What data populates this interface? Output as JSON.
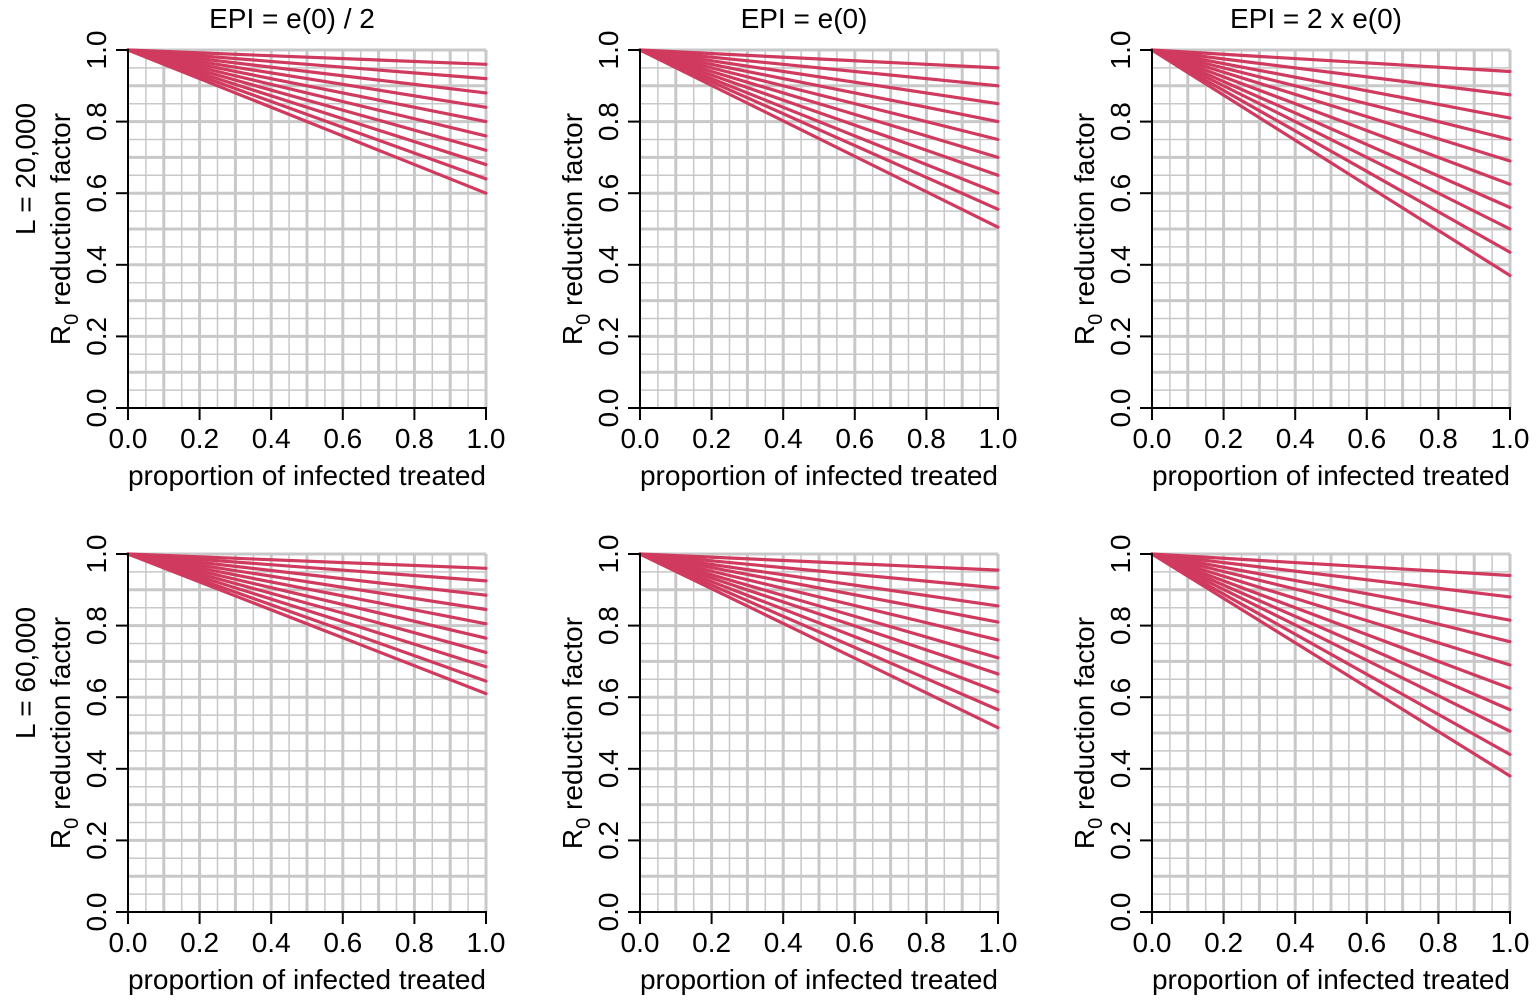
{
  "figure": {
    "column_titles": [
      "EPI = e(0) / 2",
      "EPI = e(0)",
      "EPI = 2 x e(0)"
    ],
    "row_labels": [
      "L = 20,000",
      "L = 60,000"
    ]
  },
  "style": {
    "line_color": "#d03a5e",
    "grid_color": "#c8c8c8",
    "axis_color": "#000000"
  },
  "chart_data": [
    {
      "type": "line",
      "row": 0,
      "col": 0,
      "title": "EPI = e(0) / 2",
      "row_label": "L = 20,000",
      "xlabel": "proportion of infected treated",
      "ylabel": {
        "main": "R",
        "sub": "0",
        "rest": " reduction factor"
      },
      "xlim": [
        0,
        1
      ],
      "ylim": [
        0,
        1
      ],
      "xticks": [
        "0.0",
        "0.2",
        "0.4",
        "0.6",
        "0.8",
        "1.0"
      ],
      "yticks": [
        "0.0",
        "0.2",
        "0.4",
        "0.6",
        "0.8",
        "1.0"
      ],
      "grid": true,
      "series": [
        {
          "x": [
            0,
            1
          ],
          "y": [
            1,
            0.96
          ]
        },
        {
          "x": [
            0,
            1
          ],
          "y": [
            1,
            0.92
          ]
        },
        {
          "x": [
            0,
            1
          ],
          "y": [
            1,
            0.88
          ]
        },
        {
          "x": [
            0,
            1
          ],
          "y": [
            1,
            0.84
          ]
        },
        {
          "x": [
            0,
            1
          ],
          "y": [
            1,
            0.8
          ]
        },
        {
          "x": [
            0,
            1
          ],
          "y": [
            1,
            0.76
          ]
        },
        {
          "x": [
            0,
            1
          ],
          "y": [
            1,
            0.72
          ]
        },
        {
          "x": [
            0,
            1
          ],
          "y": [
            1,
            0.68
          ]
        },
        {
          "x": [
            0,
            1
          ],
          "y": [
            1,
            0.64
          ]
        },
        {
          "x": [
            0,
            1
          ],
          "y": [
            1,
            0.6
          ]
        }
      ]
    },
    {
      "type": "line",
      "row": 0,
      "col": 1,
      "title": "EPI = e(0)",
      "xlabel": "proportion of infected treated",
      "ylabel": {
        "main": "R",
        "sub": "0",
        "rest": " reduction factor"
      },
      "xlim": [
        0,
        1
      ],
      "ylim": [
        0,
        1
      ],
      "xticks": [
        "0.0",
        "0.2",
        "0.4",
        "0.6",
        "0.8",
        "1.0"
      ],
      "yticks": [
        "0.0",
        "0.2",
        "0.4",
        "0.6",
        "0.8",
        "1.0"
      ],
      "grid": true,
      "series": [
        {
          "x": [
            0,
            1
          ],
          "y": [
            1,
            0.95
          ]
        },
        {
          "x": [
            0,
            1
          ],
          "y": [
            1,
            0.9
          ]
        },
        {
          "x": [
            0,
            1
          ],
          "y": [
            1,
            0.85
          ]
        },
        {
          "x": [
            0,
            1
          ],
          "y": [
            1,
            0.8
          ]
        },
        {
          "x": [
            0,
            1
          ],
          "y": [
            1,
            0.75
          ]
        },
        {
          "x": [
            0,
            1
          ],
          "y": [
            1,
            0.7
          ]
        },
        {
          "x": [
            0,
            1
          ],
          "y": [
            1,
            0.65
          ]
        },
        {
          "x": [
            0,
            1
          ],
          "y": [
            1,
            0.6
          ]
        },
        {
          "x": [
            0,
            1
          ],
          "y": [
            1,
            0.555
          ]
        },
        {
          "x": [
            0,
            1
          ],
          "y": [
            1,
            0.505
          ]
        }
      ]
    },
    {
      "type": "line",
      "row": 0,
      "col": 2,
      "title": "EPI = 2 x e(0)",
      "xlabel": "proportion of infected treated",
      "ylabel": {
        "main": "R",
        "sub": "0",
        "rest": " reduction factor"
      },
      "xlim": [
        0,
        1
      ],
      "ylim": [
        0,
        1
      ],
      "xticks": [
        "0.0",
        "0.2",
        "0.4",
        "0.6",
        "0.8",
        "1.0"
      ],
      "yticks": [
        "0.0",
        "0.2",
        "0.4",
        "0.6",
        "0.8",
        "1.0"
      ],
      "grid": true,
      "series": [
        {
          "x": [
            0,
            1
          ],
          "y": [
            1,
            0.94
          ]
        },
        {
          "x": [
            0,
            1
          ],
          "y": [
            1,
            0.875
          ]
        },
        {
          "x": [
            0,
            1
          ],
          "y": [
            1,
            0.81
          ]
        },
        {
          "x": [
            0,
            1
          ],
          "y": [
            1,
            0.75
          ]
        },
        {
          "x": [
            0,
            1
          ],
          "y": [
            1,
            0.69
          ]
        },
        {
          "x": [
            0,
            1
          ],
          "y": [
            1,
            0.625
          ]
        },
        {
          "x": [
            0,
            1
          ],
          "y": [
            1,
            0.56
          ]
        },
        {
          "x": [
            0,
            1
          ],
          "y": [
            1,
            0.5
          ]
        },
        {
          "x": [
            0,
            1
          ],
          "y": [
            1,
            0.435
          ]
        },
        {
          "x": [
            0,
            1
          ],
          "y": [
            1,
            0.37
          ]
        }
      ]
    },
    {
      "type": "line",
      "row": 1,
      "col": 0,
      "row_label": "L = 60,000",
      "xlabel": "proportion of infected treated",
      "ylabel": {
        "main": "R",
        "sub": "0",
        "rest": " reduction factor"
      },
      "xlim": [
        0,
        1
      ],
      "ylim": [
        0,
        1
      ],
      "xticks": [
        "0.0",
        "0.2",
        "0.4",
        "0.6",
        "0.8",
        "1.0"
      ],
      "yticks": [
        "0.0",
        "0.2",
        "0.4",
        "0.6",
        "0.8",
        "1.0"
      ],
      "grid": true,
      "series": [
        {
          "x": [
            0,
            1
          ],
          "y": [
            1,
            0.96
          ]
        },
        {
          "x": [
            0,
            1
          ],
          "y": [
            1,
            0.925
          ]
        },
        {
          "x": [
            0,
            1
          ],
          "y": [
            1,
            0.885
          ]
        },
        {
          "x": [
            0,
            1
          ],
          "y": [
            1,
            0.845
          ]
        },
        {
          "x": [
            0,
            1
          ],
          "y": [
            1,
            0.805
          ]
        },
        {
          "x": [
            0,
            1
          ],
          "y": [
            1,
            0.765
          ]
        },
        {
          "x": [
            0,
            1
          ],
          "y": [
            1,
            0.725
          ]
        },
        {
          "x": [
            0,
            1
          ],
          "y": [
            1,
            0.685
          ]
        },
        {
          "x": [
            0,
            1
          ],
          "y": [
            1,
            0.645
          ]
        },
        {
          "x": [
            0,
            1
          ],
          "y": [
            1,
            0.61
          ]
        }
      ]
    },
    {
      "type": "line",
      "row": 1,
      "col": 1,
      "xlabel": "proportion of infected treated",
      "ylabel": {
        "main": "R",
        "sub": "0",
        "rest": " reduction factor"
      },
      "xlim": [
        0,
        1
      ],
      "ylim": [
        0,
        1
      ],
      "xticks": [
        "0.0",
        "0.2",
        "0.4",
        "0.6",
        "0.8",
        "1.0"
      ],
      "yticks": [
        "0.0",
        "0.2",
        "0.4",
        "0.6",
        "0.8",
        "1.0"
      ],
      "grid": true,
      "series": [
        {
          "x": [
            0,
            1
          ],
          "y": [
            1,
            0.955
          ]
        },
        {
          "x": [
            0,
            1
          ],
          "y": [
            1,
            0.905
          ]
        },
        {
          "x": [
            0,
            1
          ],
          "y": [
            1,
            0.855
          ]
        },
        {
          "x": [
            0,
            1
          ],
          "y": [
            1,
            0.81
          ]
        },
        {
          "x": [
            0,
            1
          ],
          "y": [
            1,
            0.76
          ]
        },
        {
          "x": [
            0,
            1
          ],
          "y": [
            1,
            0.71
          ]
        },
        {
          "x": [
            0,
            1
          ],
          "y": [
            1,
            0.665
          ]
        },
        {
          "x": [
            0,
            1
          ],
          "y": [
            1,
            0.615
          ]
        },
        {
          "x": [
            0,
            1
          ],
          "y": [
            1,
            0.565
          ]
        },
        {
          "x": [
            0,
            1
          ],
          "y": [
            1,
            0.515
          ]
        }
      ]
    },
    {
      "type": "line",
      "row": 1,
      "col": 2,
      "xlabel": "proportion of infected treated",
      "ylabel": {
        "main": "R",
        "sub": "0",
        "rest": " reduction factor"
      },
      "xlim": [
        0,
        1
      ],
      "ylim": [
        0,
        1
      ],
      "xticks": [
        "0.0",
        "0.2",
        "0.4",
        "0.6",
        "0.8",
        "1.0"
      ],
      "yticks": [
        "0.0",
        "0.2",
        "0.4",
        "0.6",
        "0.8",
        "1.0"
      ],
      "grid": true,
      "series": [
        {
          "x": [
            0,
            1
          ],
          "y": [
            1,
            0.94
          ]
        },
        {
          "x": [
            0,
            1
          ],
          "y": [
            1,
            0.88
          ]
        },
        {
          "x": [
            0,
            1
          ],
          "y": [
            1,
            0.815
          ]
        },
        {
          "x": [
            0,
            1
          ],
          "y": [
            1,
            0.755
          ]
        },
        {
          "x": [
            0,
            1
          ],
          "y": [
            1,
            0.69
          ]
        },
        {
          "x": [
            0,
            1
          ],
          "y": [
            1,
            0.625
          ]
        },
        {
          "x": [
            0,
            1
          ],
          "y": [
            1,
            0.565
          ]
        },
        {
          "x": [
            0,
            1
          ],
          "y": [
            1,
            0.505
          ]
        },
        {
          "x": [
            0,
            1
          ],
          "y": [
            1,
            0.44
          ]
        },
        {
          "x": [
            0,
            1
          ],
          "y": [
            1,
            0.38
          ]
        }
      ]
    }
  ]
}
